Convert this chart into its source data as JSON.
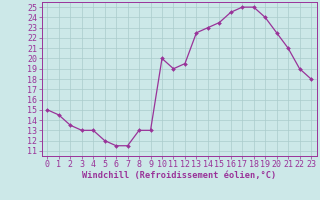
{
  "x": [
    0,
    1,
    2,
    3,
    4,
    5,
    6,
    7,
    8,
    9,
    10,
    11,
    12,
    13,
    14,
    15,
    16,
    17,
    18,
    19,
    20,
    21,
    22,
    23
  ],
  "y": [
    15,
    14.5,
    13.5,
    13,
    13,
    12,
    11.5,
    11.5,
    13,
    13,
    20,
    19,
    19.5,
    22.5,
    23,
    23.5,
    24.5,
    25,
    25,
    24,
    22.5,
    21,
    19,
    18
  ],
  "line_color": "#993399",
  "marker": "D",
  "marker_size": 2.0,
  "bg_color": "#cce8e8",
  "grid_color": "#aacccc",
  "xlabel": "Windchill (Refroidissement éolien,°C)",
  "xlabel_color": "#993399",
  "tick_color": "#993399",
  "ylim": [
    10.5,
    25.5
  ],
  "yticks": [
    11,
    12,
    13,
    14,
    15,
    16,
    17,
    18,
    19,
    20,
    21,
    22,
    23,
    24,
    25
  ],
  "xlim": [
    -0.5,
    23.5
  ],
  "xticks": [
    0,
    1,
    2,
    3,
    4,
    5,
    6,
    7,
    8,
    9,
    10,
    11,
    12,
    13,
    14,
    15,
    16,
    17,
    18,
    19,
    20,
    21,
    22,
    23
  ],
  "tick_fontsize": 6.0,
  "xlabel_fontsize": 6.2,
  "linewidth": 0.9
}
